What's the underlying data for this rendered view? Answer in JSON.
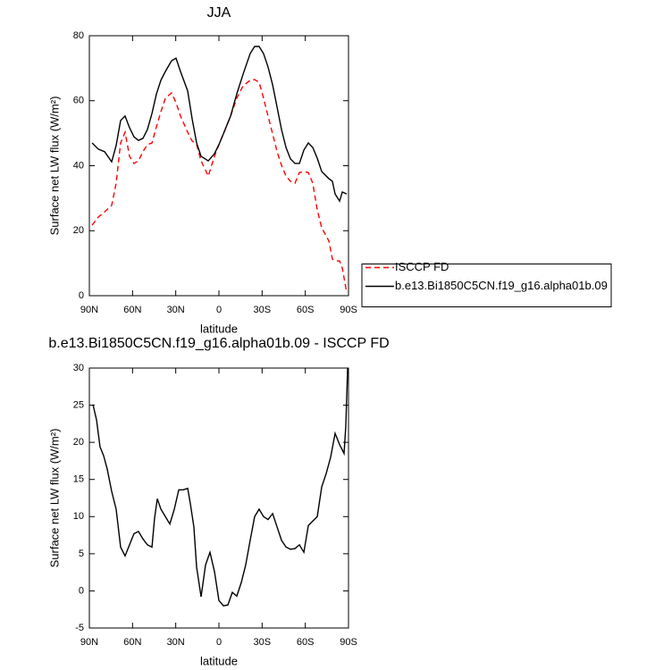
{
  "chart_data": [
    {
      "type": "line",
      "title": "JJA",
      "xlabel": "latitude",
      "ylabel": "Surface net LW flux (W/m²)",
      "x": [
        88.1,
        83.8,
        79.4,
        74.5,
        71.4,
        68.3,
        65.2,
        62.1,
        59.0,
        55.9,
        52.8,
        49.7,
        46.5,
        43.4,
        40.3,
        37.2,
        32.9,
        29.8,
        26.7,
        21.7,
        18.6,
        15.5,
        12.4,
        7.4,
        3.1,
        0,
        -3.1,
        -8.1,
        -12.4,
        -16.8,
        -21.7,
        -24.8,
        -27.9,
        -31.0,
        -34.1,
        -37.3,
        -40.4,
        -43.5,
        -46.6,
        -49.7,
        -52.8,
        -55.9,
        -59.0,
        -62.1,
        -65.2,
        -68.3,
        -71.4,
        -76.4,
        -78.8,
        -80.7,
        -83.8,
        -85.7,
        -88.8
      ],
      "series": [
        {
          "name": "ISCCP FD",
          "color": "#ff0000",
          "dashed": true,
          "values": [
            21.7,
            24.2,
            25.8,
            27.8,
            34.6,
            47.0,
            50.3,
            42.9,
            40.7,
            41.5,
            44.3,
            46.5,
            47.0,
            52.0,
            56.6,
            60.8,
            62.4,
            59.4,
            55.3,
            50.3,
            47.6,
            46.5,
            41.5,
            36.8,
            42.9,
            46.5,
            49.8,
            55.3,
            60.8,
            64.6,
            66.3,
            66.5,
            65.7,
            60.8,
            55.3,
            49.8,
            44.3,
            40.1,
            36.8,
            35.2,
            34.6,
            37.9,
            38.2,
            37.9,
            34.6,
            26.4,
            20.9,
            16.8,
            11.3,
            10.7,
            10.7,
            8.5,
            0.8
          ]
        },
        {
          "name": "b.e13.Bi1850C5CN.f19_g16.alpha01b.09",
          "color": "#000000",
          "dashed": false,
          "values": [
            47.0,
            45.1,
            44.3,
            41.2,
            46.2,
            53.9,
            55.3,
            51.7,
            48.9,
            47.8,
            48.4,
            51.1,
            56.1,
            62.1,
            66.3,
            69.0,
            72.3,
            73.1,
            69.0,
            63.0,
            54.4,
            47.0,
            42.9,
            41.5,
            43.7,
            46.5,
            49.8,
            55.3,
            62.1,
            68.2,
            74.5,
            76.7,
            76.7,
            74.5,
            70.4,
            64.9,
            58.0,
            51.1,
            45.6,
            42.1,
            40.7,
            40.7,
            44.8,
            47.0,
            45.6,
            42.3,
            38.2,
            36.0,
            35.2,
            31.3,
            29.1,
            31.9,
            31.3
          ]
        }
      ],
      "xlim": [
        90,
        -90
      ],
      "xticks": [
        {
          "value": 90,
          "label": "90N"
        },
        {
          "value": 60,
          "label": "60N"
        },
        {
          "value": 30,
          "label": "30N"
        },
        0,
        {
          "value": -30,
          "label": "30S"
        },
        {
          "value": -60,
          "label": "60S"
        },
        {
          "value": -90,
          "label": "90S"
        }
      ],
      "ylim": [
        0,
        80
      ],
      "yticks": [
        0,
        20,
        40,
        60,
        80
      ],
      "legend": "right"
    },
    {
      "type": "line",
      "title": "b.e13.Bi1850C5CN.f19_g16.alpha01b.09 - ISCCP FD",
      "xlabel": "latitude",
      "ylabel": "Surface net LW flux (W/m²)",
      "x": [
        87.5,
        85.0,
        82.6,
        80.1,
        77.6,
        74.5,
        71.4,
        68.3,
        65.2,
        62.1,
        59.0,
        55.9,
        52.8,
        49.7,
        46.5,
        44.7,
        42.8,
        40.3,
        37.2,
        34.1,
        31.0,
        27.9,
        24.8,
        21.7,
        19.9,
        17.4,
        15.5,
        12.4,
        9.3,
        6.2,
        3.1,
        0,
        -3.1,
        -6.2,
        -9.3,
        -12.4,
        -15.5,
        -18.6,
        -21.7,
        -24.8,
        -27.9,
        -31.0,
        -34.1,
        -37.3,
        -40.4,
        -43.5,
        -46.6,
        -49.7,
        -52.8,
        -55.9,
        -59.0,
        -62.1,
        -65.2,
        -68.3,
        -71.4,
        -74.5,
        -77.6,
        -80.7,
        -83.8,
        -86.9,
        -88.1,
        -89.4
      ],
      "values": [
        25.1,
        23.0,
        19.4,
        18.2,
        16.4,
        13.4,
        11.0,
        5.9,
        4.7,
        6.2,
        7.7,
        8.0,
        7.0,
        6.2,
        5.9,
        9.8,
        12.4,
        11.0,
        10.0,
        9.0,
        11.0,
        13.6,
        13.6,
        13.8,
        11.8,
        8.6,
        3.2,
        -0.8,
        3.5,
        5.2,
        2.6,
        -1.3,
        -2.0,
        -1.9,
        -0.2,
        -0.7,
        1.1,
        3.5,
        6.8,
        10.0,
        11.0,
        10.0,
        9.6,
        10.4,
        8.6,
        6.8,
        5.9,
        5.6,
        5.7,
        6.2,
        5.2,
        8.8,
        9.4,
        10.0,
        14.0,
        15.8,
        18.0,
        21.2,
        19.7,
        18.5,
        22.1,
        30.0
      ],
      "color": "#000000",
      "xlim": [
        90,
        -90
      ],
      "xticks": [
        {
          "value": 90,
          "label": "90N"
        },
        {
          "value": 60,
          "label": "60N"
        },
        {
          "value": 30,
          "label": "30N"
        },
        0,
        {
          "value": -30,
          "label": "30S"
        },
        {
          "value": -60,
          "label": "60S"
        },
        {
          "value": -90,
          "label": "90S"
        }
      ],
      "ylim": [
        -5,
        30
      ],
      "yticks": [
        -5,
        0,
        5,
        10,
        15,
        20,
        25,
        30
      ]
    }
  ]
}
